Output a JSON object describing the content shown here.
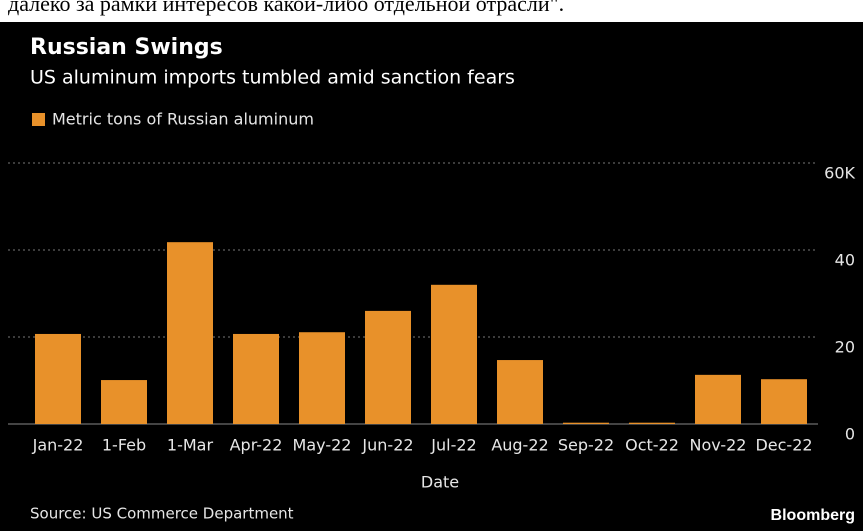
{
  "header_text": "далеко за рамки интересов какой-либо отдельной отрасли\".",
  "chart_data": {
    "type": "bar",
    "title": "Russian Swings",
    "subtitle": "US aluminum imports tumbled amid sanction fears",
    "x_label": "Date",
    "source": "Source: US Commerce Department",
    "brand": "Bloomberg",
    "categories": [
      "Jan-22",
      "1-Feb",
      "1-Mar",
      "Apr-22",
      "May-22",
      "Jun-22",
      "Jul-22",
      "Aug-22",
      "Sep-22",
      "Oct-22",
      "Nov-22",
      "Dec-22"
    ],
    "series": [
      {
        "name": "Metric tons of Russian aluminum",
        "color": "#e8912a",
        "values": [
          20.7,
          10.1,
          41.8,
          20.7,
          21.1,
          26.0,
          32.0,
          14.7,
          0.3,
          0.3,
          11.3,
          10.3
        ]
      }
    ],
    "ylim": [
      0,
      60
    ],
    "yticks": [
      0,
      20,
      40,
      {
        "value": 60,
        "label": "60K"
      }
    ],
    "grid": true
  }
}
